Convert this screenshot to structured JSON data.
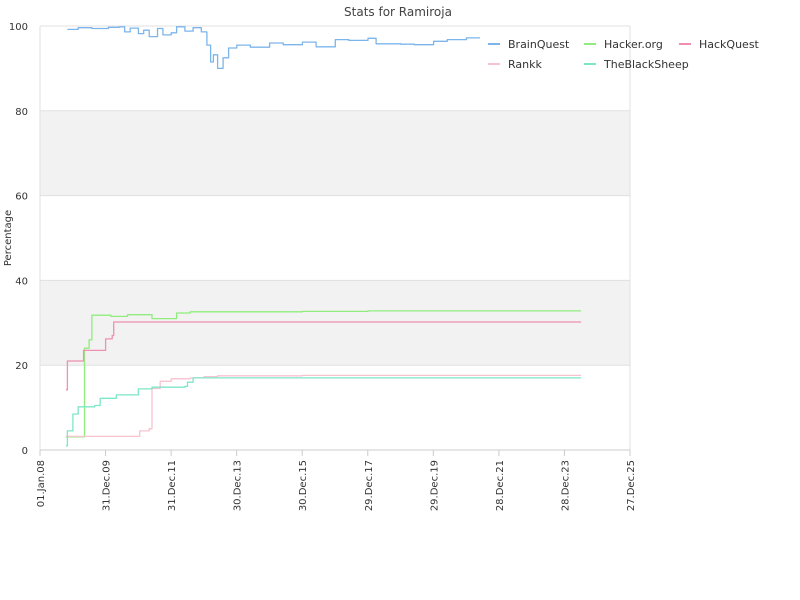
{
  "chart_data": {
    "type": "line",
    "title": "Stats for Ramiroja",
    "xlabel": "",
    "ylabel": "Percentage",
    "x_axis_type": "date",
    "xlim": [
      "2008-01-01",
      "2025-12-27"
    ],
    "ylim": [
      0,
      100
    ],
    "y_ticks": [
      0,
      20,
      40,
      60,
      80,
      100
    ],
    "x_ticks": [
      {
        "date": "2008-01-01",
        "label": "01.Jan.08"
      },
      {
        "date": "2009-12-31",
        "label": "31.Dec.09"
      },
      {
        "date": "2011-12-31",
        "label": "31.Dec.11"
      },
      {
        "date": "2013-12-30",
        "label": "30.Dec.13"
      },
      {
        "date": "2015-12-30",
        "label": "30.Dec.15"
      },
      {
        "date": "2017-12-29",
        "label": "29.Dec.17"
      },
      {
        "date": "2019-12-29",
        "label": "29.Dec.19"
      },
      {
        "date": "2021-12-28",
        "label": "28.Dec.21"
      },
      {
        "date": "2023-12-28",
        "label": "28.Dec.23"
      },
      {
        "date": "2025-12-27",
        "label": "27.Dec.25"
      }
    ],
    "grid": true,
    "alternating_bands": true,
    "legend_position": "top-right",
    "series": [
      {
        "name": "BrainQuest",
        "color": "#7cb5ec",
        "points": [
          [
            "2008-11-01",
            99.2
          ],
          [
            "2009-03-01",
            99.6
          ],
          [
            "2009-08-01",
            99.4
          ],
          [
            "2010-02-01",
            99.7
          ],
          [
            "2010-06-01",
            99.8
          ],
          [
            "2010-08-01",
            98.6
          ],
          [
            "2010-10-01",
            99.5
          ],
          [
            "2011-01-01",
            98.2
          ],
          [
            "2011-03-01",
            99.0
          ],
          [
            "2011-05-01",
            97.5
          ],
          [
            "2011-08-01",
            99.4
          ],
          [
            "2011-10-01",
            97.9
          ],
          [
            "2012-01-01",
            98.4
          ],
          [
            "2012-03-01",
            99.8
          ],
          [
            "2012-06-01",
            98.8
          ],
          [
            "2012-09-01",
            99.6
          ],
          [
            "2012-12-01",
            98.6
          ],
          [
            "2013-02-01",
            95.5
          ],
          [
            "2013-03-15",
            91.5
          ],
          [
            "2013-04-15",
            93.2
          ],
          [
            "2013-06-01",
            90.0
          ],
          [
            "2013-08-01",
            92.5
          ],
          [
            "2013-10-01",
            94.8
          ],
          [
            "2014-01-01",
            95.5
          ],
          [
            "2014-06-01",
            95.0
          ],
          [
            "2015-01-01",
            96.0
          ],
          [
            "2015-06-01",
            95.6
          ],
          [
            "2016-01-01",
            96.2
          ],
          [
            "2016-06-01",
            95.1
          ],
          [
            "2017-01-01",
            96.8
          ],
          [
            "2017-06-01",
            96.6
          ],
          [
            "2018-01-01",
            97.1
          ],
          [
            "2018-04-01",
            95.8
          ],
          [
            "2019-01-01",
            95.7
          ],
          [
            "2019-06-01",
            95.6
          ],
          [
            "2020-01-01",
            96.4
          ],
          [
            "2020-06-01",
            96.8
          ],
          [
            "2021-01-01",
            97.2
          ],
          [
            "2021-06-01",
            97.2
          ]
        ]
      },
      {
        "name": "Hacker.org",
        "color": "#90ed7d",
        "points": [
          [
            "2008-10-15",
            3.1
          ],
          [
            "2009-05-01",
            3.1
          ],
          [
            "2009-05-10",
            24.0
          ],
          [
            "2009-07-01",
            26.0
          ],
          [
            "2009-08-01",
            31.8
          ],
          [
            "2010-03-01",
            31.5
          ],
          [
            "2010-09-01",
            31.9
          ],
          [
            "2011-06-01",
            31.0
          ],
          [
            "2012-03-01",
            32.3
          ],
          [
            "2012-08-01",
            32.6
          ],
          [
            "2014-01-01",
            32.6
          ],
          [
            "2016-01-01",
            32.7
          ],
          [
            "2018-01-01",
            32.8
          ],
          [
            "2024-07-01",
            32.8
          ]
        ]
      },
      {
        "name": "HackQuest",
        "color": "#f7a35c",
        "line_color": "#f08fb0",
        "points": [
          [
            "2008-10-15",
            14.2
          ],
          [
            "2008-11-01",
            21.0
          ],
          [
            "2009-05-01",
            23.5
          ],
          [
            "2010-01-01",
            26.2
          ],
          [
            "2010-03-15",
            27.0
          ],
          [
            "2010-04-01",
            30.2
          ],
          [
            "2012-01-01",
            30.2
          ],
          [
            "2024-07-01",
            30.2
          ]
        ]
      },
      {
        "name": "Rankk",
        "color": "#f7c3cf",
        "points": [
          [
            "2008-10-15",
            3.2
          ],
          [
            "2011-01-01",
            3.2
          ],
          [
            "2011-01-15",
            4.5
          ],
          [
            "2011-05-01",
            5.0
          ],
          [
            "2011-06-01",
            14.5
          ],
          [
            "2011-09-01",
            16.2
          ],
          [
            "2012-01-01",
            16.8
          ],
          [
            "2012-08-01",
            17.0
          ],
          [
            "2013-01-01",
            17.3
          ],
          [
            "2013-06-01",
            17.5
          ],
          [
            "2016-01-01",
            17.6
          ],
          [
            "2024-07-01",
            17.6
          ]
        ]
      },
      {
        "name": "TheBlackSheep",
        "color": "#7de6c8",
        "points": [
          [
            "2008-10-15",
            1.0
          ],
          [
            "2008-11-01",
            4.5
          ],
          [
            "2009-01-01",
            8.5
          ],
          [
            "2009-03-01",
            10.2
          ],
          [
            "2009-09-01",
            10.5
          ],
          [
            "2009-11-01",
            12.2
          ],
          [
            "2010-05-01",
            13.0
          ],
          [
            "2011-01-01",
            14.4
          ],
          [
            "2011-06-01",
            14.8
          ],
          [
            "2012-06-01",
            15.0
          ],
          [
            "2012-07-01",
            16.0
          ],
          [
            "2012-09-01",
            17.0
          ],
          [
            "2013-01-01",
            17.0
          ],
          [
            "2024-07-01",
            17.0
          ]
        ]
      }
    ]
  }
}
